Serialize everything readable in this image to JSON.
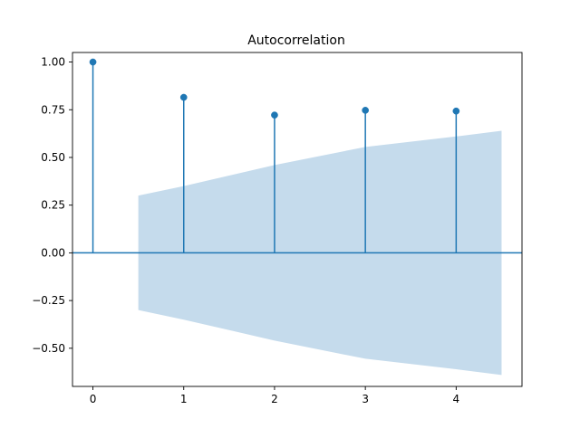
{
  "chart_data": {
    "type": "scatter",
    "title": "Autocorrelation",
    "xlabel": "",
    "ylabel": "",
    "x": [
      0,
      1,
      2,
      3,
      4
    ],
    "values": [
      1.0,
      0.815,
      0.722,
      0.747,
      0.743
    ],
    "confidence_band": {
      "x": [
        0.5,
        1,
        2,
        3,
        4,
        4.5
      ],
      "upper": [
        0.3,
        0.35,
        0.46,
        0.555,
        0.61,
        0.64
      ],
      "lower": [
        -0.3,
        -0.35,
        -0.46,
        -0.555,
        -0.61,
        -0.64
      ]
    },
    "xlim": [
      -0.225,
      4.725
    ],
    "ylim": [
      -0.7,
      1.05
    ],
    "xticks": [
      0,
      1,
      2,
      3,
      4
    ],
    "xtick_labels": [
      "0",
      "1",
      "2",
      "3",
      "4"
    ],
    "yticks": [
      1.0,
      0.75,
      0.5,
      0.25,
      0.0,
      -0.25,
      -0.5
    ],
    "ytick_labels": [
      "1.00",
      "0.75",
      "0.50",
      "0.25",
      "0.00",
      "−0.25",
      "−0.50"
    ],
    "grid": false,
    "colors": {
      "stem": "#1f77b4",
      "marker": "#1f77b4",
      "zero_line": "#1f77b4",
      "band": "#c5dbec",
      "axes": "#000000"
    }
  }
}
